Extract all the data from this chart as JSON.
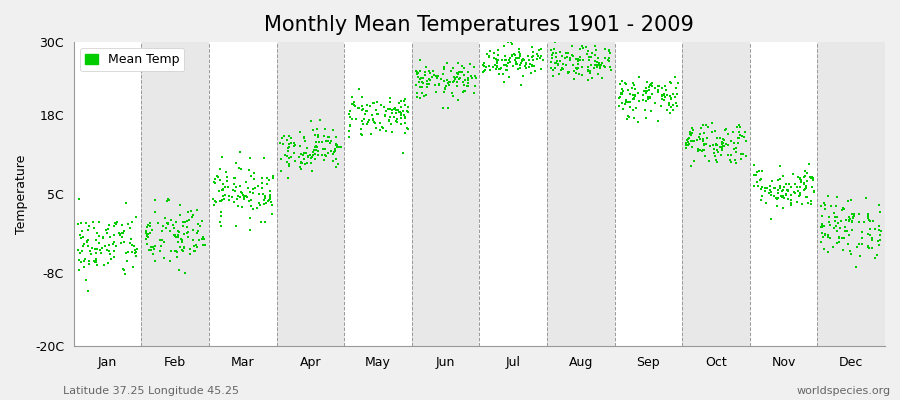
{
  "title": "Monthly Mean Temperatures 1901 - 2009",
  "ylabel": "Temperature",
  "months": [
    "Jan",
    "Feb",
    "Mar",
    "Apr",
    "May",
    "Jun",
    "Jul",
    "Aug",
    "Sep",
    "Oct",
    "Nov",
    "Dec"
  ],
  "month_means": [
    -3.5,
    -2.0,
    5.5,
    12.5,
    18.0,
    23.5,
    27.0,
    26.5,
    21.0,
    13.5,
    6.0,
    -0.5
  ],
  "month_stds": [
    2.8,
    2.8,
    2.3,
    1.8,
    1.8,
    1.5,
    1.4,
    1.4,
    1.8,
    1.8,
    1.8,
    2.5
  ],
  "n_years": 109,
  "seed": 42,
  "dot_color": "#00cc00",
  "dot_size": 3,
  "dot_marker": "s",
  "bg_color": "#f0f0f0",
  "plot_bg_color": "#ffffff",
  "alt_band_color": "#e8e8e8",
  "grid_color": "#999999",
  "ylim": [
    -20,
    30
  ],
  "yticks": [
    -20,
    -8,
    5,
    18,
    30
  ],
  "ytick_labels": [
    "-20C",
    "-8C",
    "5C",
    "18C",
    "30C"
  ],
  "legend_label": "Mean Temp",
  "footnote_left": "Latitude 37.25 Longitude 45.25",
  "footnote_right": "worldspecies.org",
  "title_fontsize": 15,
  "label_fontsize": 9,
  "tick_fontsize": 9,
  "footnote_fontsize": 8
}
